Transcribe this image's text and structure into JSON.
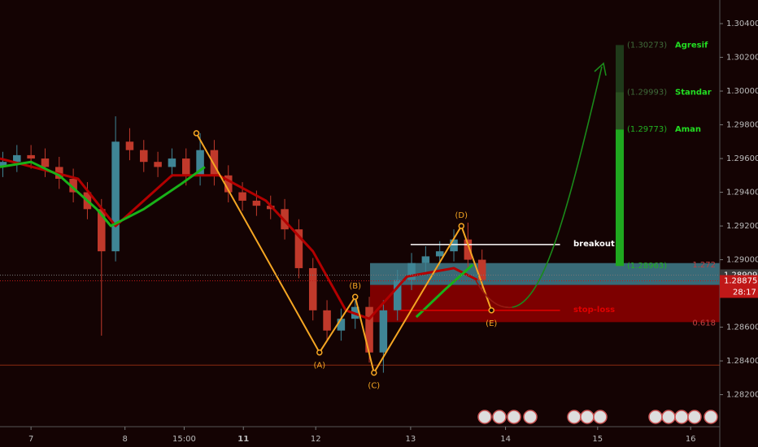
{
  "chart_data": {
    "type": "candlestick",
    "xlim": [
      -0.33,
      7.33
    ],
    "ylim": [
      1.2801,
      1.3054
    ],
    "xticks": [
      {
        "value": 0,
        "label": "7"
      },
      {
        "value": 1,
        "label": "8"
      },
      {
        "value": 1.63,
        "label": "15:00"
      },
      {
        "value": 2.26,
        "label": "11"
      },
      {
        "value": 3.03,
        "label": "12"
      },
      {
        "value": 4.04,
        "label": "13"
      },
      {
        "value": 5.05,
        "label": "14"
      },
      {
        "value": 6.03,
        "label": "15"
      },
      {
        "value": 7.02,
        "label": "16"
      }
    ],
    "yticks": [
      {
        "value": 1.282,
        "label": "1.28200"
      },
      {
        "value": 1.284,
        "label": "1.28400"
      },
      {
        "value": 1.286,
        "label": "1.28600"
      },
      {
        "value": 1.288,
        "label": "1.28800"
      },
      {
        "value": 1.29,
        "label": "1.29000"
      },
      {
        "value": 1.292,
        "label": "1.29200"
      },
      {
        "value": 1.294,
        "label": "1.29400"
      },
      {
        "value": 1.296,
        "label": "1.29600"
      },
      {
        "value": 1.298,
        "label": "1.29800"
      },
      {
        "value": 1.3,
        "label": "1.30000"
      },
      {
        "value": 1.302,
        "label": "1.30200"
      },
      {
        "value": 1.304,
        "label": "1.30400"
      }
    ],
    "candles": {
      "up_color": "#3f8595",
      "down_color": "#c0392b",
      "x": [
        -0.3,
        -0.15,
        0,
        0.15,
        0.3,
        0.45,
        0.6,
        0.75,
        0.9,
        1.05,
        1.2,
        1.35,
        1.5,
        1.65,
        1.8,
        1.95,
        2.1,
        2.25,
        2.4,
        2.55,
        2.7,
        2.85,
        3.0,
        3.15,
        3.3,
        3.45,
        3.6,
        3.75,
        3.9,
        4.05,
        4.2,
        4.35,
        4.5,
        4.65,
        4.8
      ],
      "open": [
        1.2955,
        1.2958,
        1.2962,
        1.296,
        1.2955,
        1.2948,
        1.294,
        1.293,
        1.2905,
        1.297,
        1.2965,
        1.2958,
        1.2955,
        1.296,
        1.295,
        1.2965,
        1.295,
        1.294,
        1.2935,
        1.2932,
        1.293,
        1.2918,
        1.2895,
        1.287,
        1.2858,
        1.2865,
        1.2872,
        1.2845,
        1.287,
        1.2888,
        1.2898,
        1.2902,
        1.2905,
        1.2912,
        1.29
      ],
      "high": [
        1.2964,
        1.2968,
        1.2968,
        1.2966,
        1.2961,
        1.2954,
        1.2946,
        1.2936,
        1.2985,
        1.2978,
        1.2971,
        1.2964,
        1.2966,
        1.2966,
        1.2975,
        1.2971,
        1.2956,
        1.2946,
        1.2941,
        1.2938,
        1.2936,
        1.2924,
        1.2901,
        1.2876,
        1.2871,
        1.2878,
        1.2878,
        1.2876,
        1.2894,
        1.2904,
        1.2908,
        1.2911,
        1.2918,
        1.2922,
        1.2906
      ],
      "low": [
        1.2949,
        1.2952,
        1.2954,
        1.2949,
        1.2942,
        1.2934,
        1.2924,
        1.2855,
        1.2899,
        1.2959,
        1.2952,
        1.2949,
        1.2949,
        1.2944,
        1.2944,
        1.2944,
        1.2934,
        1.2929,
        1.2926,
        1.2924,
        1.2912,
        1.2889,
        1.2864,
        1.2852,
        1.2852,
        1.2859,
        1.2839,
        1.2833,
        1.2864,
        1.2882,
        1.2892,
        1.2896,
        1.2899,
        1.2894,
        1.2882
      ],
      "close": [
        1.2958,
        1.2962,
        1.296,
        1.2955,
        1.2948,
        1.294,
        1.293,
        1.2905,
        1.297,
        1.2965,
        1.2958,
        1.2955,
        1.296,
        1.295,
        1.2965,
        1.295,
        1.294,
        1.2935,
        1.2932,
        1.293,
        1.2918,
        1.2895,
        1.287,
        1.2858,
        1.2865,
        1.2872,
        1.2845,
        1.287,
        1.2888,
        1.2898,
        1.2902,
        1.2905,
        1.2912,
        1.29,
        1.2888
      ]
    },
    "series": [
      {
        "color": "#b30000",
        "x": [
          -0.33,
          0.5,
          0.9,
          1.5,
          2,
          2.5,
          3,
          3.35,
          3.6,
          4,
          4.5,
          4.75
        ],
        "values": [
          1.296,
          1.2948,
          1.292,
          1.295,
          1.295,
          1.2935,
          1.2905,
          1.287,
          1.2865,
          1.289,
          1.2895,
          1.2888
        ]
      },
      {
        "color": "#19b219",
        "x": [
          -0.33,
          0,
          0.3,
          0.7,
          0.85,
          1.2,
          1.6,
          1.85,
          3.75,
          4.1,
          4.4,
          4.7
        ],
        "values": [
          1.2955,
          1.2958,
          1.295,
          1.293,
          1.292,
          1.293,
          1.2945,
          1.2955,
          null,
          1.2866,
          1.2882,
          1.2897
        ]
      }
    ],
    "pattern": {
      "color": "#f5a623",
      "x": [
        1.76,
        3.07,
        3.45,
        3.65,
        4.58,
        4.9
      ],
      "values": [
        1.2975,
        1.2845,
        1.2878,
        1.2833,
        1.292,
        1.287
      ],
      "labels": [
        null,
        "(A)",
        "(B)",
        "(C)",
        "(D)",
        "(E)"
      ]
    },
    "zones": [
      {
        "low": 1.2885,
        "high": 1.2898,
        "color": "#3f7c8c"
      },
      {
        "low": 1.2863,
        "high": 1.2885,
        "color": "#8f0000"
      }
    ],
    "levels": [
      {
        "value": 1.2909,
        "x": [
          4.04,
          5.63
        ],
        "label": "breakout",
        "color": "#ffffff"
      },
      {
        "value": 1.287,
        "x": [
          3.93,
          5.63
        ],
        "label": "stop-loss",
        "color": "#e00000"
      }
    ],
    "entry": {
      "value": 1.28963,
      "label": "(1.28963)"
    },
    "targets": [
      {
        "value": 1.29773,
        "label": "(1.29773)",
        "name": "Aman",
        "color": "#1fa81f"
      },
      {
        "value": 1.29993,
        "label": "(1.29993)",
        "name": "Standar",
        "color": "#2a4f20"
      },
      {
        "value": 1.30273,
        "label": "(1.30273)",
        "name": "Agresif",
        "color": "#1f3a1a"
      }
    ],
    "fib": [
      {
        "ratio": 1.272,
        "price": 1.2897
      },
      {
        "ratio": 0.618,
        "price": 1.28625
      }
    ],
    "hlines": [
      {
        "value": 1.28375,
        "color": "#8a2a10"
      }
    ],
    "tags": [
      {
        "value": 1.28909,
        "color": "#3a3a3a"
      },
      {
        "value": 1.28875,
        "color": "#c01818",
        "countdown": "28:17"
      }
    ]
  }
}
